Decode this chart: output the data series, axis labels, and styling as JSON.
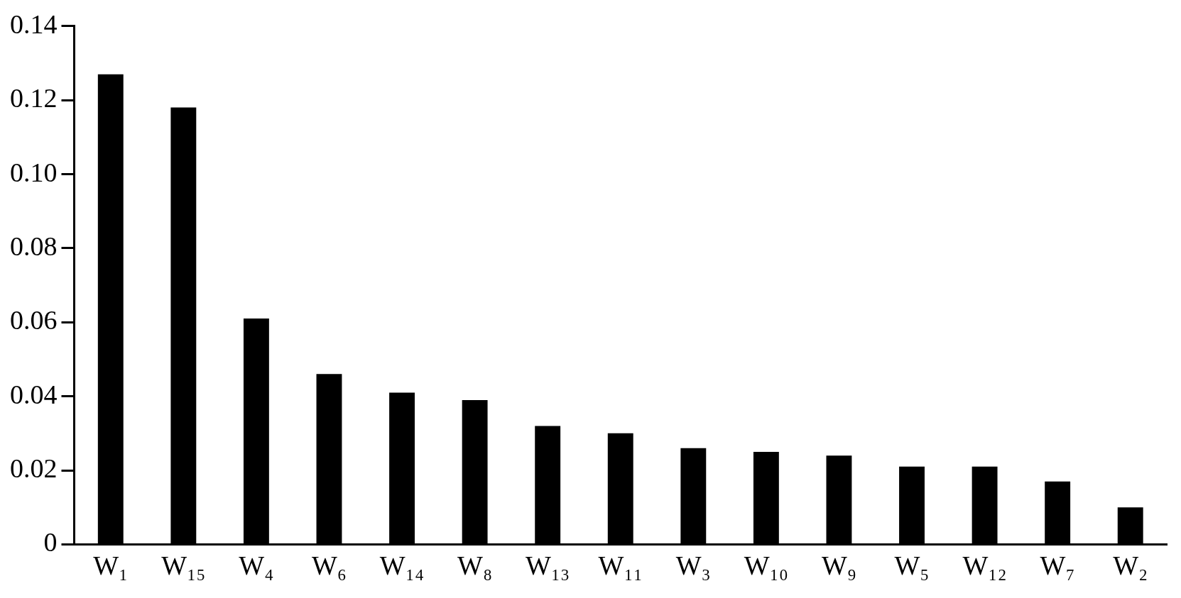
{
  "chart_data": {
    "type": "bar",
    "categories": [
      "W₁",
      "W₁₅",
      "W₄",
      "W₆",
      "W₁₄",
      "W₈",
      "W₁₃",
      "W₁₁",
      "W₃",
      "W₁₀",
      "W₉",
      "W₅",
      "W₁₂",
      "W₇",
      "W₂"
    ],
    "values": [
      0.127,
      0.118,
      0.061,
      0.046,
      0.041,
      0.039,
      0.032,
      0.03,
      0.026,
      0.025,
      0.024,
      0.021,
      0.021,
      0.017,
      0.01
    ],
    "color": "#000000",
    "ylim": [
      0,
      0.14
    ],
    "yticks": [
      0,
      0.02,
      0.04,
      0.06,
      0.08,
      {
        "value": 0.1,
        "label": "0.10"
      },
      0.12,
      0.14
    ],
    "grid": false,
    "legend": false
  }
}
